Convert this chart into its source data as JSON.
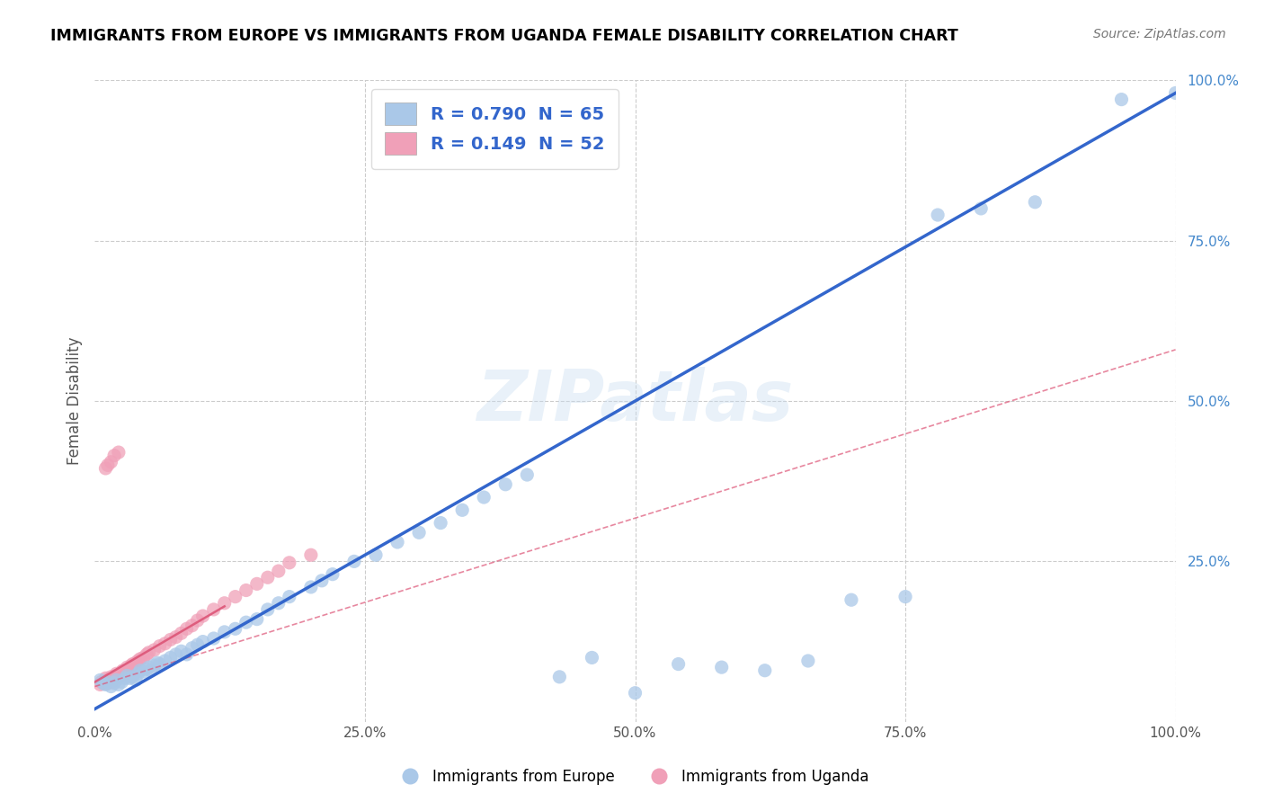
{
  "title": "IMMIGRANTS FROM EUROPE VS IMMIGRANTS FROM UGANDA FEMALE DISABILITY CORRELATION CHART",
  "source": "Source: ZipAtlas.com",
  "ylabel": "Female Disability",
  "xlim": [
    0,
    1
  ],
  "ylim": [
    0,
    1
  ],
  "xticklabels": [
    "0.0%",
    "25.0%",
    "50.0%",
    "75.0%",
    "100.0%"
  ],
  "legend1_label": "R = 0.790  N = 65",
  "legend2_label": "R = 0.149  N = 52",
  "legend_bottom1": "Immigrants from Europe",
  "legend_bottom2": "Immigrants from Uganda",
  "blue_color": "#aac8e8",
  "pink_color": "#f0a0b8",
  "blue_line_color": "#3366cc",
  "pink_line_color": "#dd5577",
  "watermark": "ZIPatlas",
  "blue_scatter_x": [
    0.005,
    0.008,
    0.01,
    0.012,
    0.015,
    0.018,
    0.02,
    0.022,
    0.025,
    0.028,
    0.03,
    0.032,
    0.035,
    0.038,
    0.04,
    0.042,
    0.045,
    0.048,
    0.05,
    0.052,
    0.055,
    0.058,
    0.06,
    0.065,
    0.07,
    0.075,
    0.08,
    0.085,
    0.09,
    0.095,
    0.1,
    0.11,
    0.12,
    0.13,
    0.14,
    0.15,
    0.16,
    0.17,
    0.18,
    0.2,
    0.21,
    0.22,
    0.24,
    0.26,
    0.28,
    0.3,
    0.32,
    0.34,
    0.36,
    0.38,
    0.4,
    0.43,
    0.46,
    0.5,
    0.54,
    0.58,
    0.62,
    0.66,
    0.7,
    0.75,
    0.78,
    0.82,
    0.87,
    0.95,
    1.0
  ],
  "blue_scatter_y": [
    0.065,
    0.06,
    0.058,
    0.062,
    0.055,
    0.06,
    0.065,
    0.058,
    0.062,
    0.068,
    0.072,
    0.068,
    0.07,
    0.065,
    0.075,
    0.08,
    0.078,
    0.082,
    0.085,
    0.08,
    0.088,
    0.092,
    0.09,
    0.095,
    0.1,
    0.105,
    0.11,
    0.105,
    0.115,
    0.12,
    0.125,
    0.13,
    0.14,
    0.145,
    0.155,
    0.16,
    0.175,
    0.185,
    0.195,
    0.21,
    0.22,
    0.23,
    0.25,
    0.26,
    0.28,
    0.295,
    0.31,
    0.33,
    0.35,
    0.37,
    0.385,
    0.07,
    0.1,
    0.045,
    0.09,
    0.085,
    0.08,
    0.095,
    0.19,
    0.195,
    0.79,
    0.8,
    0.81,
    0.97,
    0.98
  ],
  "pink_scatter_x": [
    0.005,
    0.006,
    0.008,
    0.01,
    0.01,
    0.012,
    0.014,
    0.015,
    0.016,
    0.018,
    0.02,
    0.02,
    0.022,
    0.024,
    0.025,
    0.026,
    0.028,
    0.03,
    0.03,
    0.032,
    0.034,
    0.035,
    0.038,
    0.04,
    0.042,
    0.045,
    0.048,
    0.05,
    0.055,
    0.06,
    0.065,
    0.07,
    0.075,
    0.08,
    0.085,
    0.09,
    0.095,
    0.1,
    0.11,
    0.12,
    0.13,
    0.14,
    0.15,
    0.16,
    0.17,
    0.18,
    0.2,
    0.01,
    0.012,
    0.015,
    0.018,
    0.022
  ],
  "pink_scatter_y": [
    0.058,
    0.062,
    0.06,
    0.065,
    0.068,
    0.06,
    0.065,
    0.07,
    0.062,
    0.068,
    0.072,
    0.075,
    0.07,
    0.075,
    0.078,
    0.08,
    0.075,
    0.08,
    0.085,
    0.082,
    0.088,
    0.09,
    0.092,
    0.095,
    0.098,
    0.1,
    0.105,
    0.108,
    0.112,
    0.118,
    0.122,
    0.128,
    0.132,
    0.138,
    0.145,
    0.15,
    0.158,
    0.165,
    0.175,
    0.185,
    0.195,
    0.205,
    0.215,
    0.225,
    0.235,
    0.248,
    0.26,
    0.395,
    0.4,
    0.405,
    0.415,
    0.42
  ],
  "blue_line_x": [
    0.0,
    1.0
  ],
  "blue_line_y": [
    0.02,
    0.98
  ],
  "pink_line_x": [
    0.0,
    1.0
  ],
  "pink_line_y": [
    0.055,
    0.58
  ]
}
